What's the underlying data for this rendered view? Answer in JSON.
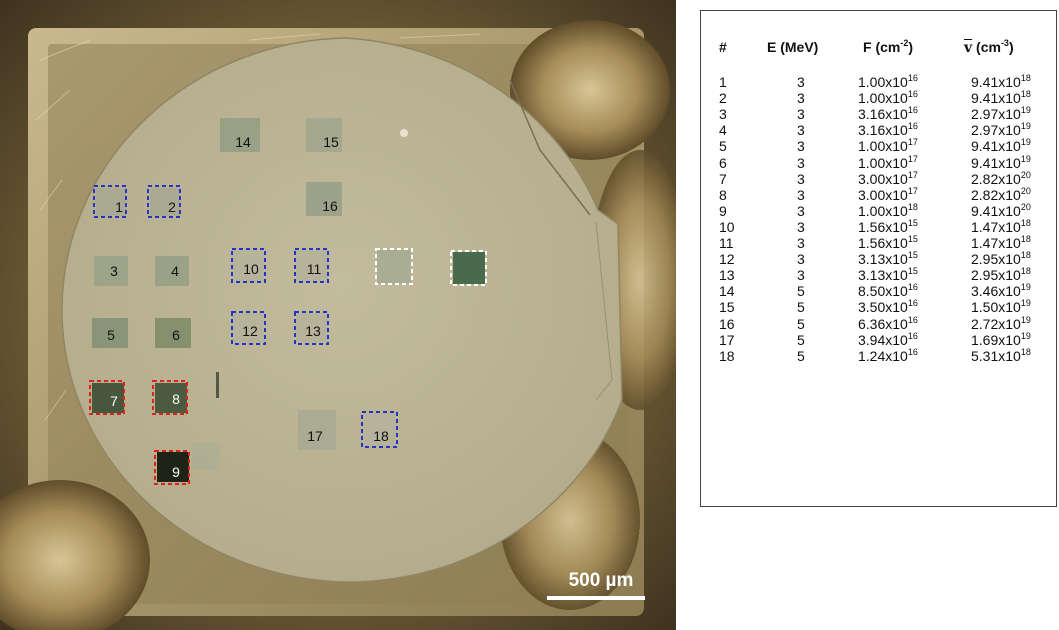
{
  "scale_bar": {
    "label": "500 µm"
  },
  "spots": [
    {
      "id": "1",
      "label": "1",
      "marker": "blue"
    },
    {
      "id": "2",
      "label": "2",
      "marker": "blue"
    },
    {
      "id": "3",
      "label": "3",
      "marker": "none"
    },
    {
      "id": "4",
      "label": "4",
      "marker": "none"
    },
    {
      "id": "5",
      "label": "5",
      "marker": "none"
    },
    {
      "id": "6",
      "label": "6",
      "marker": "none"
    },
    {
      "id": "7",
      "label": "7",
      "marker": "red"
    },
    {
      "id": "8",
      "label": "8",
      "marker": "red"
    },
    {
      "id": "9",
      "label": "9",
      "marker": "red"
    },
    {
      "id": "10",
      "label": "10",
      "marker": "blue"
    },
    {
      "id": "11",
      "label": "11",
      "marker": "blue"
    },
    {
      "id": "12",
      "label": "12",
      "marker": "blue"
    },
    {
      "id": "13",
      "label": "13",
      "marker": "blue"
    },
    {
      "id": "14",
      "label": "14",
      "marker": "none"
    },
    {
      "id": "15",
      "label": "15",
      "marker": "none"
    },
    {
      "id": "16",
      "label": "16",
      "marker": "none"
    },
    {
      "id": "17",
      "label": "17",
      "marker": "none"
    },
    {
      "id": "18",
      "label": "18",
      "marker": "blue"
    }
  ],
  "colors": {
    "blue_marker": "#2433c8",
    "red_marker": "#e02020",
    "white_marker": "#ffffff"
  },
  "table": {
    "headers": {
      "num": "#",
      "energy": "E (MeV)",
      "fluence_base": "F (cm",
      "fluence_exp": "-2",
      "fluence_end": ")",
      "density_symbol": "v",
      "density_base": " (cm",
      "density_exp": "-3",
      "density_end": ")"
    },
    "rows": [
      {
        "n": "1",
        "e": "3",
        "f_m": "1.00x10",
        "f_e": "16",
        "v_m": "9.41x10",
        "v_e": "18"
      },
      {
        "n": "2",
        "e": "3",
        "f_m": "1.00x10",
        "f_e": "16",
        "v_m": "9.41x10",
        "v_e": "18"
      },
      {
        "n": "3",
        "e": "3",
        "f_m": "3.16x10",
        "f_e": "16",
        "v_m": "2.97x10",
        "v_e": "19"
      },
      {
        "n": "4",
        "e": "3",
        "f_m": "3.16x10",
        "f_e": "16",
        "v_m": "2.97x10",
        "v_e": "19"
      },
      {
        "n": "5",
        "e": "3",
        "f_m": "1.00x10",
        "f_e": "17",
        "v_m": "9.41x10",
        "v_e": "19"
      },
      {
        "n": "6",
        "e": "3",
        "f_m": "1.00x10",
        "f_e": "17",
        "v_m": "9.41x10",
        "v_e": "19"
      },
      {
        "n": "7",
        "e": "3",
        "f_m": "3.00x10",
        "f_e": "17",
        "v_m": "2.82x10",
        "v_e": "20"
      },
      {
        "n": "8",
        "e": "3",
        "f_m": "3.00x10",
        "f_e": "17",
        "v_m": "2.82x10",
        "v_e": "20"
      },
      {
        "n": "9",
        "e": "3",
        "f_m": "1.00x10",
        "f_e": "18",
        "v_m": "9.41x10",
        "v_e": "20"
      },
      {
        "n": "10",
        "e": "3",
        "f_m": "1.56x10",
        "f_e": "15",
        "v_m": "1.47x10",
        "v_e": "18"
      },
      {
        "n": "11",
        "e": "3",
        "f_m": "1.56x10",
        "f_e": "15",
        "v_m": "1.47x10",
        "v_e": "18"
      },
      {
        "n": "12",
        "e": "3",
        "f_m": "3.13x10",
        "f_e": "15",
        "v_m": "2.95x10",
        "v_e": "18"
      },
      {
        "n": "13",
        "e": "3",
        "f_m": "3.13x10",
        "f_e": "15",
        "v_m": "2.95x10",
        "v_e": "18"
      },
      {
        "n": "14",
        "e": "5",
        "f_m": "8.50x10",
        "f_e": "16",
        "v_m": "3.46x10",
        "v_e": "19"
      },
      {
        "n": "15",
        "e": "5",
        "f_m": "3.50x10",
        "f_e": "16",
        "v_m": "1.50x10",
        "v_e": "19"
      },
      {
        "n": "16",
        "e": "5",
        "f_m": "6.36x10",
        "f_e": "16",
        "v_m": "2.72x10",
        "v_e": "19"
      },
      {
        "n": "17",
        "e": "5",
        "f_m": "3.94x10",
        "f_e": "16",
        "v_m": "1.69x10",
        "v_e": "19"
      },
      {
        "n": "18",
        "e": "5",
        "f_m": "1.24x10",
        "f_e": "16",
        "v_m": "5.31x10",
        "v_e": "18"
      }
    ]
  }
}
